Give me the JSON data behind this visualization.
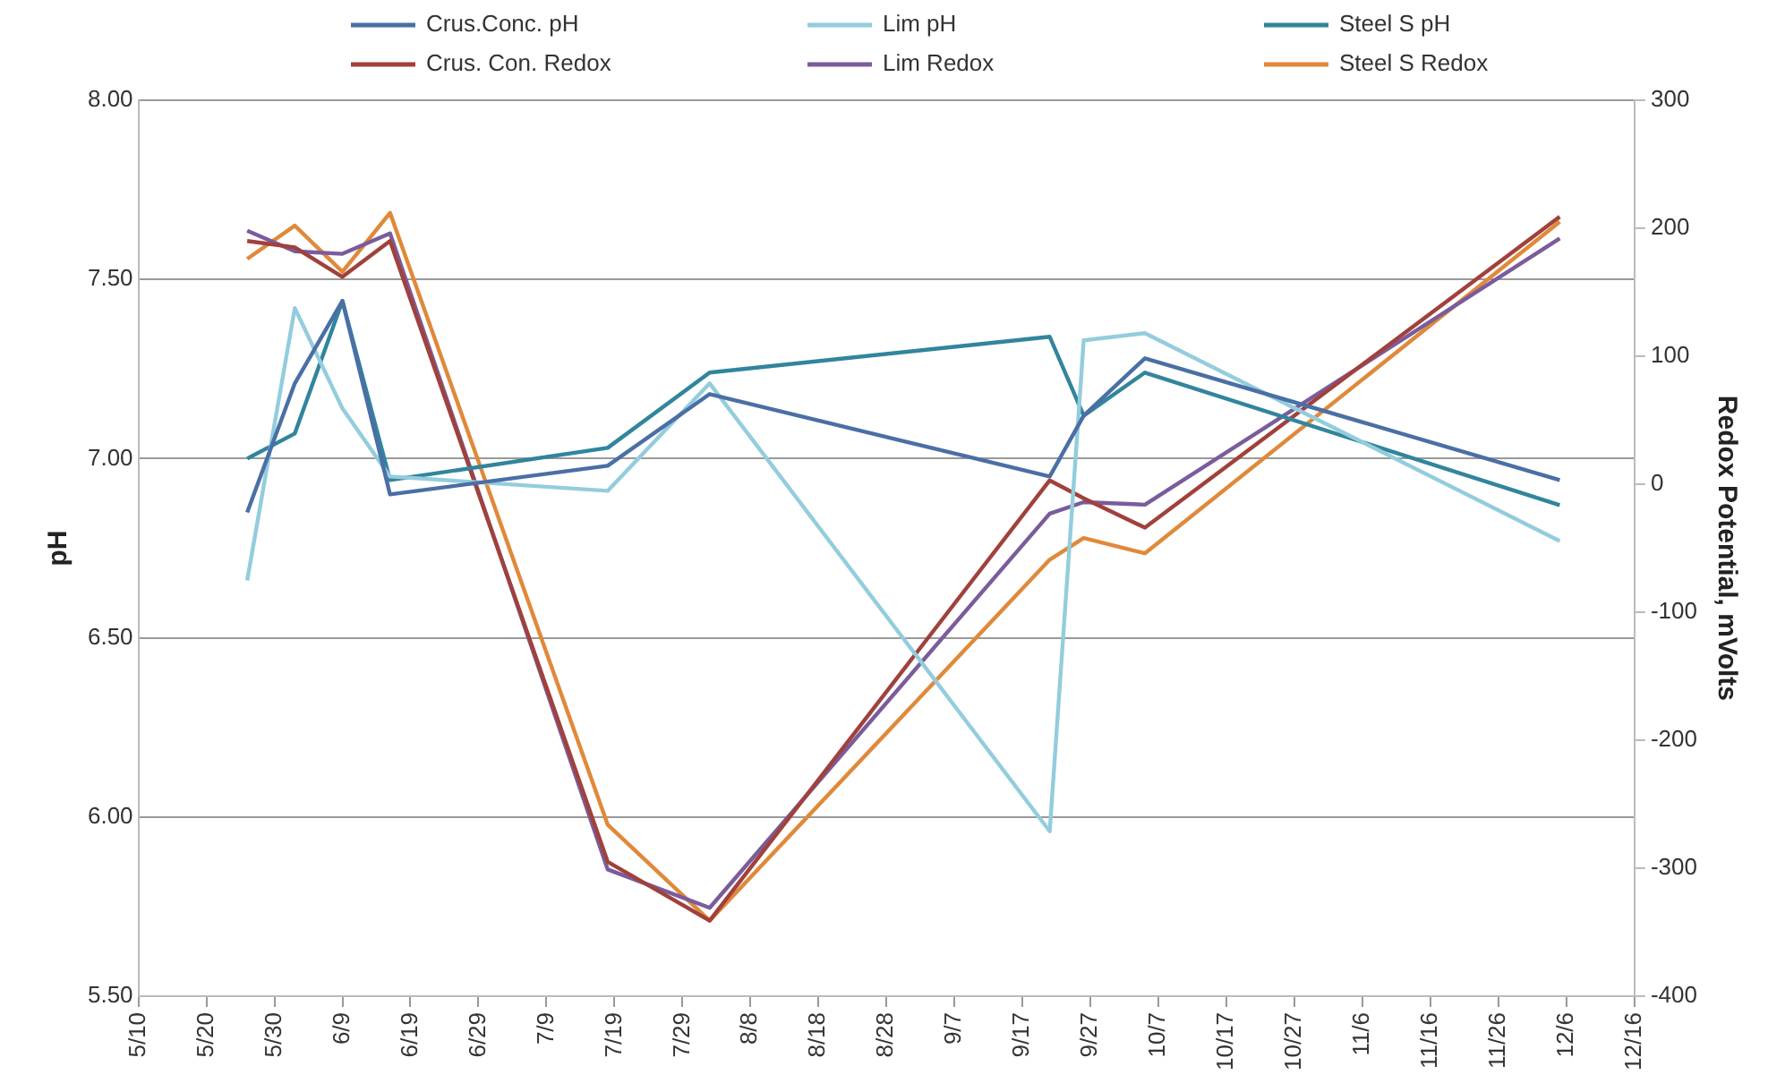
{
  "chart_data": {
    "type": "line",
    "ylabel": "pH",
    "y2label": "Redox Potential, mVolts",
    "x": [
      "--05-26",
      "--06-02",
      "--06-09",
      "--06-16",
      "--07-18",
      "--08-02",
      "--09-21",
      "--09-26",
      "--10-05",
      "--12-05"
    ],
    "series": [
      {
        "name": "Crus.Conc. pH",
        "color": "#4a6fa5",
        "values": [
          6.85,
          7.21,
          7.44,
          6.9,
          6.98,
          7.18,
          6.95,
          7.12,
          7.28,
          6.94
        ]
      },
      {
        "name": "Lim pH",
        "color": "#93cddd",
        "values": [
          6.66,
          7.42,
          7.14,
          6.95,
          6.91,
          7.21,
          5.96,
          7.33,
          7.35,
          6.77
        ]
      },
      {
        "name": "Steel S pH",
        "color": "#31859c",
        "values": [
          7.0,
          7.07,
          7.44,
          6.94,
          7.03,
          7.24,
          7.34,
          7.12,
          7.24,
          6.87
        ]
      },
      {
        "name": "Crus. Con. Redox",
        "color": "#a0413c",
        "axis": "y2",
        "values": [
          190,
          185,
          162,
          190,
          -295,
          -341,
          3,
          -11,
          -34,
          209
        ]
      },
      {
        "name": "Lim Redox",
        "color": "#7a5c9c",
        "axis": "y2",
        "values": [
          198,
          182,
          180,
          196,
          -301,
          -331,
          -23,
          -14,
          -16,
          192
        ]
      },
      {
        "name": "Steel S Redox",
        "color": "#e0893a",
        "axis": "y2",
        "values": [
          176,
          202,
          166,
          212,
          -266,
          -341,
          -59,
          -42,
          -54,
          205
        ]
      }
    ],
    "xlim": [
      "--05-10",
      "--12-16"
    ],
    "xticks": [
      {
        "value": "--05-10",
        "label": "5/10"
      },
      {
        "value": "--05-20",
        "label": "5/20"
      },
      {
        "value": "--05-30",
        "label": "5/30"
      },
      {
        "value": "--06-09",
        "label": "6/9"
      },
      {
        "value": "--06-19",
        "label": "6/19"
      },
      {
        "value": "--06-29",
        "label": "6/29"
      },
      {
        "value": "--07-09",
        "label": "7/9"
      },
      {
        "value": "--07-19",
        "label": "7/19"
      },
      {
        "value": "--07-29",
        "label": "7/29"
      },
      {
        "value": "--08-08",
        "label": "8/8"
      },
      {
        "value": "--08-18",
        "label": "8/18"
      },
      {
        "value": "--08-28",
        "label": "8/28"
      },
      {
        "value": "--09-07",
        "label": "9/7"
      },
      {
        "value": "--09-17",
        "label": "9/17"
      },
      {
        "value": "--09-27",
        "label": "9/27"
      },
      {
        "value": "--10-07",
        "label": "10/7"
      },
      {
        "value": "--10-17",
        "label": "10/17"
      },
      {
        "value": "--10-27",
        "label": "10/27"
      },
      {
        "value": "--11-06",
        "label": "11/6"
      },
      {
        "value": "--11-16",
        "label": "11/16"
      },
      {
        "value": "--11-26",
        "label": "11/26"
      },
      {
        "value": "--12-06",
        "label": "12/6"
      },
      {
        "value": "--12-16",
        "label": "12/16"
      }
    ],
    "ylim": [
      5.5,
      8
    ],
    "yticks": [
      {
        "value": 5.5,
        "label": "5.50"
      },
      {
        "value": 6,
        "label": "6.00"
      },
      {
        "value": 6.5,
        "label": "6.50"
      },
      {
        "value": 7,
        "label": "7.00"
      },
      {
        "value": 7.5,
        "label": "7.50"
      },
      {
        "value": 8,
        "label": "8.00"
      }
    ],
    "y2lim": [
      -400,
      300
    ],
    "y2ticks": [
      -400,
      -300,
      -200,
      -100,
      0,
      100,
      200,
      300
    ],
    "grid": "y",
    "legend": "top",
    "marker": "none",
    "line_style": "solid"
  }
}
